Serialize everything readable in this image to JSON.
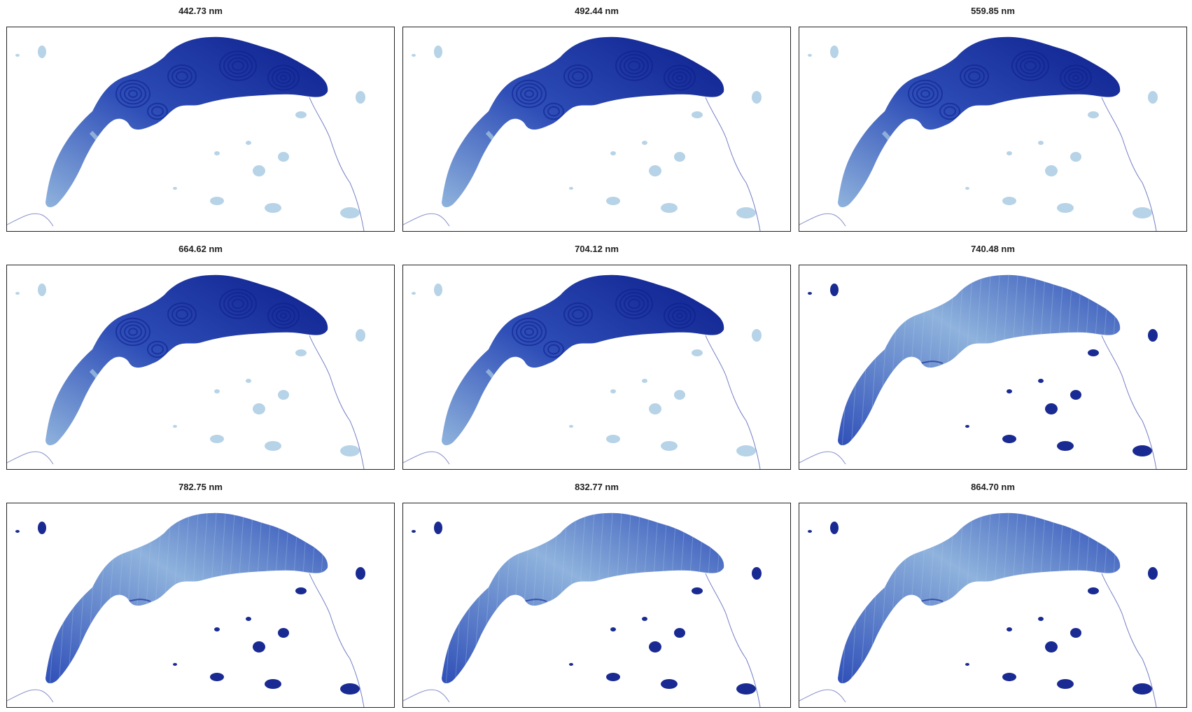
{
  "figure": {
    "description_free": true,
    "panels": [
      {
        "label": "442.73 nm",
        "style": "visible"
      },
      {
        "label": "492.44 nm",
        "style": "visible"
      },
      {
        "label": "559.85 nm",
        "style": "visible"
      },
      {
        "label": "664.62 nm",
        "style": "visible"
      },
      {
        "label": "704.12 nm",
        "style": "visible"
      },
      {
        "label": "740.48 nm",
        "style": "nir"
      },
      {
        "label": "782.75 nm",
        "style": "nir"
      },
      {
        "label": "832.77 nm",
        "style": "nir"
      },
      {
        "label": "864.70 nm",
        "style": "nir"
      }
    ]
  },
  "colors": {
    "deep": "#0d1f8c",
    "mid": "#2f4fb8",
    "light": "#8fb3dd",
    "pale": "#a9cbe3",
    "river": "#3949ab",
    "frame": "#222222"
  }
}
